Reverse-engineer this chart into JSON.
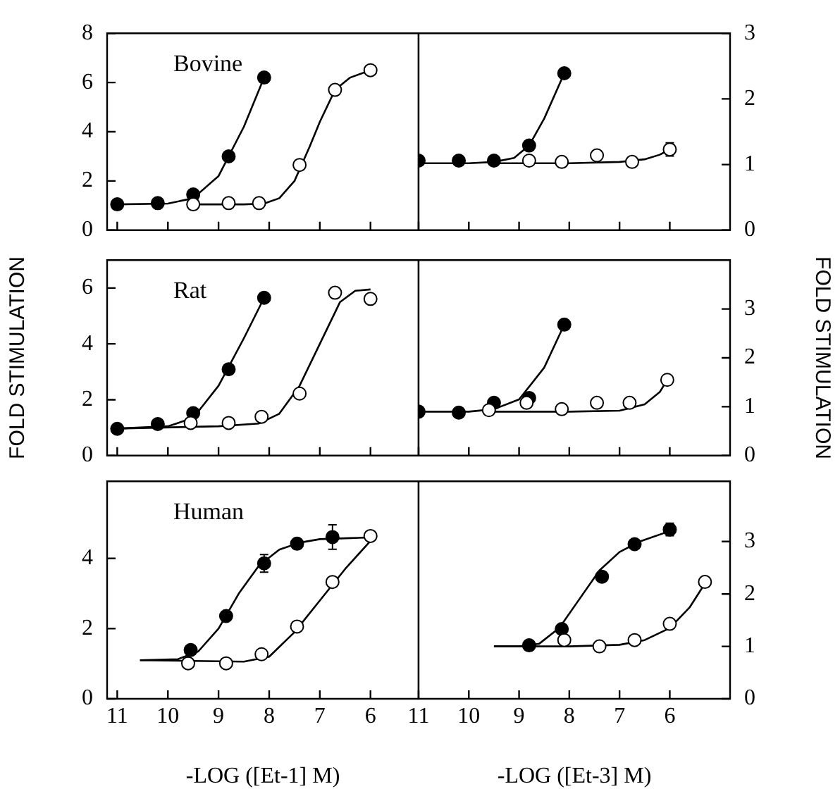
{
  "chart_data": [
    {
      "type": "scatter",
      "annotations": [
        "Bovine"
      ],
      "xlim": [
        11.2,
        5.05
      ],
      "xticks": [
        11,
        10,
        9,
        8,
        7,
        6
      ],
      "ylim": [
        0,
        8
      ],
      "yticks": [
        0,
        2,
        4,
        6,
        8
      ],
      "tick_labels": "y",
      "series": [
        {
          "type": "line",
          "color": "#000000",
          "marker": "none",
          "x": [
            11,
            10,
            9.5,
            9,
            8.5,
            8.1
          ],
          "values": [
            1.05,
            1.08,
            1.3,
            2.2,
            4.2,
            6.2
          ]
        },
        {
          "type": "line",
          "color": "#000000",
          "marker": "none",
          "x": [
            9.5,
            8.5,
            8.1,
            7.8,
            7.5,
            7.2,
            7,
            6.7,
            6.4,
            6.0
          ],
          "values": [
            1.05,
            1.05,
            1.08,
            1.3,
            2.0,
            3.4,
            4.4,
            5.7,
            6.2,
            6.5
          ]
        },
        {
          "type": "scatter",
          "color": "#000000",
          "marker": "circle",
          "x": [
            11,
            10.2,
            9.5,
            8.8,
            8.1
          ],
          "values": [
            1.05,
            1.1,
            1.45,
            3.0,
            6.2
          ]
        },
        {
          "type": "scatter",
          "color": "#ffffff",
          "marker": "circle",
          "x": [
            9.5,
            8.8,
            8.2,
            7.4,
            6.7,
            6.0
          ],
          "values": [
            1.05,
            1.1,
            1.1,
            2.65,
            5.7,
            6.5
          ]
        }
      ]
    },
    {
      "type": "scatter",
      "xlim": [
        11,
        4.8
      ],
      "xticks": [
        11,
        10,
        9,
        8,
        7,
        6
      ],
      "ylim": [
        0,
        3
      ],
      "yticks": [
        0,
        1,
        2,
        3
      ],
      "tick_labels": "y",
      "series": [
        {
          "type": "line",
          "color": "#000000",
          "marker": "none",
          "x": [
            11,
            10,
            9.5,
            9.1,
            8.8,
            8.5,
            8.1
          ],
          "values": [
            1.02,
            1.02,
            1.04,
            1.1,
            1.29,
            1.7,
            2.39
          ]
        },
        {
          "type": "line",
          "color": "#000000",
          "marker": "none",
          "x": [
            9.5,
            8,
            7,
            6.5,
            6.2,
            6.0
          ],
          "values": [
            1.02,
            1.02,
            1.04,
            1.08,
            1.15,
            1.23
          ]
        },
        {
          "type": "scatter",
          "color": "#000000",
          "marker": "circle",
          "x": [
            11,
            10.2,
            9.5,
            8.8,
            8.1
          ],
          "values": [
            1.06,
            1.06,
            1.06,
            1.29,
            2.39
          ]
        },
        {
          "type": "scatter",
          "color": "#ffffff",
          "marker": "circle",
          "x": [
            8.8,
            8.15,
            7.45,
            6.75,
            6.0
          ],
          "values": [
            1.06,
            1.04,
            1.14,
            1.04,
            1.23
          ],
          "errors": [
            null,
            null,
            null,
            null,
            0.1
          ]
        }
      ]
    },
    {
      "type": "scatter",
      "annotations": [
        "Rat"
      ],
      "ylabel": "FOLD STIMULATION",
      "xlim": [
        11.2,
        5.05
      ],
      "xticks": [
        11,
        10,
        9,
        8,
        7,
        6
      ],
      "ylim": [
        0,
        7
      ],
      "yticks": [
        0,
        2,
        4,
        6
      ],
      "tick_labels": "y",
      "series": [
        {
          "type": "line",
          "color": "#000000",
          "marker": "none",
          "x": [
            11,
            10,
            9.5,
            9,
            8.5,
            8.1
          ],
          "values": [
            0.97,
            1.05,
            1.35,
            2.5,
            4.2,
            5.65
          ]
        },
        {
          "type": "line",
          "color": "#000000",
          "marker": "none",
          "x": [
            11,
            9,
            8.2,
            7.8,
            7.4,
            7,
            6.6,
            6.3,
            6.0
          ],
          "values": [
            0.97,
            1.05,
            1.15,
            1.5,
            2.5,
            4.0,
            5.5,
            5.9,
            5.95
          ]
        },
        {
          "type": "scatter",
          "color": "#000000",
          "marker": "circle",
          "x": [
            11,
            10.2,
            9.5,
            8.8,
            8.1
          ],
          "values": [
            0.96,
            1.13,
            1.52,
            3.09,
            5.65
          ]
        },
        {
          "type": "scatter",
          "color": "#ffffff",
          "marker": "circle",
          "x": [
            9.55,
            8.8,
            8.15,
            7.4,
            6.7,
            6.0
          ],
          "values": [
            1.17,
            1.17,
            1.39,
            2.22,
            5.83,
            5.61
          ]
        }
      ]
    },
    {
      "type": "scatter",
      "ylabel": "FOLD STIMULATION",
      "xlim": [
        11,
        4.8
      ],
      "xticks": [
        11,
        10,
        9,
        8,
        7,
        6
      ],
      "ylim": [
        0,
        4
      ],
      "yticks": [
        0,
        1,
        2,
        3
      ],
      "tick_labels": "y",
      "series": [
        {
          "type": "line",
          "color": "#000000",
          "marker": "none",
          "x": [
            11,
            10,
            9.5,
            9,
            8.5,
            8.1
          ],
          "values": [
            0.9,
            0.9,
            0.95,
            1.15,
            1.8,
            2.68
          ]
        },
        {
          "type": "line",
          "color": "#000000",
          "marker": "none",
          "x": [
            9.6,
            8,
            7,
            6.5,
            6.2,
            6.05
          ],
          "values": [
            0.9,
            0.9,
            0.92,
            1.05,
            1.3,
            1.55
          ]
        },
        {
          "type": "scatter",
          "color": "#000000",
          "marker": "circle",
          "x": [
            11,
            10.2,
            9.5,
            8.8,
            8.1
          ],
          "values": [
            0.9,
            0.88,
            1.08,
            1.18,
            2.68
          ]
        },
        {
          "type": "scatter",
          "color": "#ffffff",
          "marker": "circle",
          "x": [
            9.6,
            8.85,
            8.15,
            7.45,
            6.8,
            6.05
          ],
          "values": [
            0.93,
            1.08,
            0.95,
            1.08,
            1.08,
            1.55
          ]
        }
      ]
    },
    {
      "type": "scatter",
      "annotations": [
        "Human"
      ],
      "xlabel": "-LOG ([Et-1] M)",
      "xlim": [
        11.2,
        5.05
      ],
      "xticks": [
        11,
        10,
        9,
        8,
        7,
        6
      ],
      "ylim": [
        0,
        6.2
      ],
      "yticks": [
        0,
        2,
        4
      ],
      "series": [
        {
          "type": "line",
          "color": "#000000",
          "marker": "none",
          "x": [
            10.55,
            9.8,
            9.4,
            9,
            8.6,
            8.2,
            7.8,
            7.4,
            7,
            6.4,
            6.0
          ],
          "values": [
            1.1,
            1.13,
            1.35,
            2.0,
            3.0,
            3.8,
            4.25,
            4.45,
            4.55,
            4.58,
            4.6
          ]
        },
        {
          "type": "line",
          "color": "#000000",
          "marker": "none",
          "x": [
            10.55,
            9.5,
            8.5,
            8,
            7.5,
            7,
            6.5,
            6.0
          ],
          "values": [
            1.1,
            1.08,
            1.06,
            1.2,
            1.9,
            2.8,
            3.7,
            4.5
          ]
        },
        {
          "type": "scatter",
          "color": "#000000",
          "marker": "circle",
          "x": [
            9.55,
            8.85,
            8.1,
            7.45,
            6.75
          ],
          "values": [
            1.39,
            2.36,
            3.86,
            4.42,
            4.61
          ],
          "errors": [
            null,
            null,
            0.25,
            null,
            0.35
          ]
        },
        {
          "type": "scatter",
          "color": "#ffffff",
          "marker": "circle",
          "x": [
            9.6,
            8.85,
            8.15,
            7.45,
            6.75,
            6.0
          ],
          "values": [
            1.01,
            1.01,
            1.27,
            2.06,
            3.33,
            4.64
          ]
        }
      ]
    },
    {
      "type": "scatter",
      "xlabel": "-LOG ([Et-3] M)",
      "xlim": [
        11,
        4.8
      ],
      "xticks": [
        11,
        10,
        9,
        8,
        7,
        6
      ],
      "ylim": [
        0,
        4.15
      ],
      "yticks": [
        0,
        1,
        2,
        3
      ],
      "series": [
        {
          "type": "line",
          "color": "#000000",
          "marker": "none",
          "x": [
            9.5,
            9,
            8.6,
            8.2,
            7.8,
            7.4,
            7,
            6.6,
            6.0
          ],
          "values": [
            1.0,
            1.0,
            1.05,
            1.35,
            1.9,
            2.45,
            2.8,
            3.0,
            3.2
          ]
        },
        {
          "type": "line",
          "color": "#000000",
          "marker": "none",
          "x": [
            9.5,
            8,
            7,
            6.5,
            6,
            5.6,
            5.3
          ],
          "values": [
            1.0,
            1.0,
            1.03,
            1.12,
            1.35,
            1.75,
            2.2
          ]
        },
        {
          "type": "scatter",
          "color": "#000000",
          "marker": "circle",
          "x": [
            8.8,
            8.15,
            7.35,
            6.7,
            6.0
          ],
          "values": [
            1.02,
            1.33,
            2.33,
            2.95,
            3.23
          ],
          "errors": [
            null,
            null,
            null,
            null,
            0.12
          ]
        },
        {
          "type": "scatter",
          "color": "#ffffff",
          "marker": "circle",
          "x": [
            8.1,
            7.4,
            6.7,
            6.0,
            5.3
          ],
          "values": [
            1.12,
            1.0,
            1.12,
            1.43,
            2.23
          ]
        }
      ]
    }
  ]
}
